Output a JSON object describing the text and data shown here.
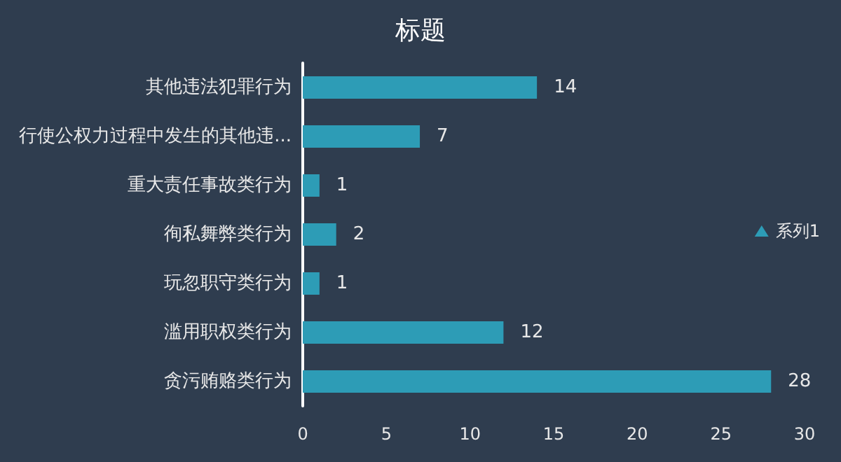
{
  "chart_data": {
    "type": "bar",
    "orientation": "horizontal",
    "title": "标题",
    "categories": [
      "其他违法犯罪行为",
      "行使公权力过程中发生的其他违...",
      "重大责任事故类行为",
      "徇私舞弊类行为",
      "玩忽职守类行为",
      "滥用职权类行为",
      "贪污贿赂类行为"
    ],
    "series": [
      {
        "name": "系列1",
        "color": "#2d9cb6",
        "values": [
          14,
          7,
          1,
          2,
          1,
          12,
          28
        ]
      }
    ],
    "xlim": [
      0,
      30
    ],
    "xticks": [
      0,
      5,
      10,
      15,
      20,
      25,
      30
    ],
    "grid": false,
    "legend": "right",
    "data_labels": true
  }
}
